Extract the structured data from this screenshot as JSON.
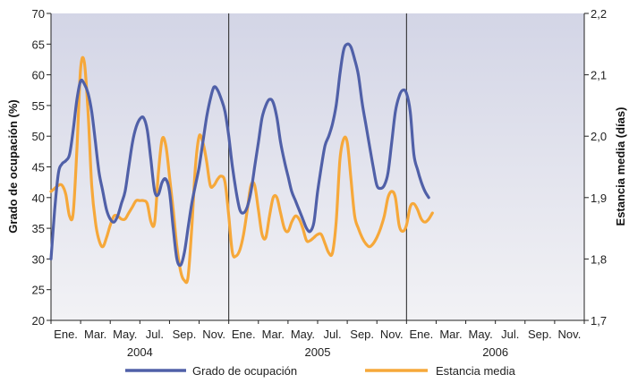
{
  "chart_data": {
    "type": "line",
    "title": "",
    "ylabel_left": "Grado de ocupación (%)",
    "ylabel_right": "Estancia media (días)",
    "ylim_left": [
      20,
      70
    ],
    "ylim_right": [
      1.7,
      2.2
    ],
    "yticks_left": [
      "20",
      "25",
      "30",
      "35",
      "40",
      "45",
      "50",
      "55",
      "60",
      "65",
      "70"
    ],
    "yticks_right": [
      "1,7",
      "1,8",
      "1,9",
      "2,0",
      "2,1",
      "2,2"
    ],
    "month_labels": [
      "Ene.",
      "Mar.",
      "May.",
      "Jul.",
      "Sep.",
      "Nov.",
      "Ene.",
      "Mar.",
      "May.",
      "Jul.",
      "Sep.",
      "Nov.",
      "Ene.",
      "Mar.",
      "May.",
      "Jul.",
      "Sep.",
      "Nov."
    ],
    "year_labels": [
      "2004",
      "2005",
      "2006"
    ],
    "grid": false,
    "legend_position": "bottom",
    "colors": {
      "ocupacion": "#5060a8",
      "estancia": "#f6a83a",
      "background_top": "#d3d5e6",
      "background_bottom": "#f2f2f5"
    },
    "series": [
      {
        "name": "Grado de ocupación",
        "axis": "left",
        "points": [
          [
            0,
            30
          ],
          [
            0.25,
            38
          ],
          [
            0.5,
            44
          ],
          [
            0.75,
            45.5
          ],
          [
            1,
            46
          ],
          [
            1.25,
            47
          ],
          [
            1.5,
            51
          ],
          [
            1.75,
            56
          ],
          [
            2,
            59
          ],
          [
            2.25,
            58.5
          ],
          [
            2.5,
            57
          ],
          [
            2.75,
            54
          ],
          [
            3,
            49
          ],
          [
            3.25,
            44
          ],
          [
            3.5,
            41
          ],
          [
            3.75,
            38
          ],
          [
            4,
            36.5
          ],
          [
            4.25,
            36
          ],
          [
            4.5,
            37
          ],
          [
            4.75,
            39
          ],
          [
            5,
            41
          ],
          [
            5.25,
            45
          ],
          [
            5.5,
            49
          ],
          [
            5.75,
            51.5
          ],
          [
            6,
            52.8
          ],
          [
            6.25,
            53
          ],
          [
            6.5,
            51
          ],
          [
            6.75,
            46
          ],
          [
            7,
            41
          ],
          [
            7.25,
            40.5
          ],
          [
            7.5,
            42.5
          ],
          [
            7.75,
            43
          ],
          [
            8,
            41
          ],
          [
            8.25,
            35
          ],
          [
            8.5,
            30
          ],
          [
            8.75,
            29
          ],
          [
            9,
            31
          ],
          [
            9.25,
            35
          ],
          [
            9.5,
            39
          ],
          [
            9.75,
            42
          ],
          [
            10,
            45
          ],
          [
            10.25,
            49
          ],
          [
            10.5,
            53
          ],
          [
            10.75,
            56
          ],
          [
            11,
            58
          ],
          [
            11.25,
            57.5
          ],
          [
            11.5,
            56
          ],
          [
            11.75,
            54
          ],
          [
            12,
            50
          ],
          [
            12.25,
            45
          ],
          [
            12.5,
            41
          ],
          [
            12.75,
            38
          ],
          [
            13,
            37.5
          ],
          [
            13.25,
            38.5
          ],
          [
            13.5,
            41
          ],
          [
            13.75,
            45
          ],
          [
            14,
            49
          ],
          [
            14.25,
            53
          ],
          [
            14.5,
            55
          ],
          [
            14.75,
            56
          ],
          [
            15,
            55.5
          ],
          [
            15.25,
            53
          ],
          [
            15.5,
            49
          ],
          [
            15.75,
            46
          ],
          [
            16,
            43.5
          ],
          [
            16.25,
            41
          ],
          [
            16.5,
            39.5
          ],
          [
            16.75,
            38
          ],
          [
            17,
            36.5
          ],
          [
            17.25,
            35
          ],
          [
            17.5,
            34.5
          ],
          [
            17.75,
            36
          ],
          [
            18,
            41
          ],
          [
            18.25,
            45
          ],
          [
            18.5,
            48.5
          ],
          [
            18.75,
            50
          ],
          [
            19,
            52
          ],
          [
            19.25,
            55
          ],
          [
            19.5,
            60
          ],
          [
            19.75,
            64
          ],
          [
            20,
            65
          ],
          [
            20.25,
            64.5
          ],
          [
            20.5,
            62.5
          ],
          [
            20.75,
            60
          ],
          [
            21,
            55.5
          ],
          [
            21.25,
            52
          ],
          [
            21.5,
            48.5
          ],
          [
            21.75,
            45
          ],
          [
            22,
            42
          ],
          [
            22.25,
            41.5
          ],
          [
            22.5,
            42
          ],
          [
            22.75,
            44
          ],
          [
            23,
            49
          ],
          [
            23.25,
            54
          ],
          [
            23.5,
            56.5
          ],
          [
            23.75,
            57.5
          ],
          [
            24,
            57
          ],
          [
            24.25,
            54
          ],
          [
            24.5,
            47
          ],
          [
            24.75,
            44.5
          ],
          [
            25,
            42.5
          ],
          [
            25.25,
            41
          ],
          [
            25.5,
            40
          ]
        ]
      },
      {
        "name": "Estancia media",
        "axis": "right",
        "points": [
          [
            0,
            1.91
          ],
          [
            0.25,
            1.915
          ],
          [
            0.5,
            1.92
          ],
          [
            0.75,
            1.92
          ],
          [
            1,
            1.905
          ],
          [
            1.25,
            1.87
          ],
          [
            1.5,
            1.875
          ],
          [
            1.75,
            1.98
          ],
          [
            2,
            2.11
          ],
          [
            2.25,
            2.12
          ],
          [
            2.5,
            2.04
          ],
          [
            2.75,
            1.92
          ],
          [
            3,
            1.86
          ],
          [
            3.25,
            1.83
          ],
          [
            3.5,
            1.82
          ],
          [
            3.75,
            1.835
          ],
          [
            4,
            1.855
          ],
          [
            4.25,
            1.87
          ],
          [
            4.5,
            1.87
          ],
          [
            4.75,
            1.865
          ],
          [
            5,
            1.865
          ],
          [
            5.25,
            1.875
          ],
          [
            5.5,
            1.885
          ],
          [
            5.75,
            1.895
          ],
          [
            6,
            1.895
          ],
          [
            6.25,
            1.895
          ],
          [
            6.5,
            1.89
          ],
          [
            6.75,
            1.86
          ],
          [
            7,
            1.86
          ],
          [
            7.25,
            1.94
          ],
          [
            7.5,
            1.995
          ],
          [
            7.75,
            1.985
          ],
          [
            8,
            1.935
          ],
          [
            8.25,
            1.88
          ],
          [
            8.5,
            1.82
          ],
          [
            8.75,
            1.78
          ],
          [
            9,
            1.765
          ],
          [
            9.25,
            1.77
          ],
          [
            9.5,
            1.85
          ],
          [
            9.75,
            1.95
          ],
          [
            10,
            2.0
          ],
          [
            10.25,
            1.99
          ],
          [
            10.5,
            1.96
          ],
          [
            10.75,
            1.92
          ],
          [
            11,
            1.92
          ],
          [
            11.25,
            1.93
          ],
          [
            11.5,
            1.935
          ],
          [
            11.75,
            1.925
          ],
          [
            12,
            1.87
          ],
          [
            12.25,
            1.81
          ],
          [
            12.5,
            1.805
          ],
          [
            12.75,
            1.815
          ],
          [
            13,
            1.84
          ],
          [
            13.25,
            1.88
          ],
          [
            13.5,
            1.92
          ],
          [
            13.75,
            1.92
          ],
          [
            14,
            1.88
          ],
          [
            14.25,
            1.84
          ],
          [
            14.5,
            1.835
          ],
          [
            14.75,
            1.87
          ],
          [
            15,
            1.9
          ],
          [
            15.25,
            1.9
          ],
          [
            15.5,
            1.875
          ],
          [
            15.75,
            1.85
          ],
          [
            16,
            1.845
          ],
          [
            16.25,
            1.86
          ],
          [
            16.5,
            1.87
          ],
          [
            16.75,
            1.865
          ],
          [
            17,
            1.85
          ],
          [
            17.25,
            1.83
          ],
          [
            17.5,
            1.83
          ],
          [
            17.75,
            1.835
          ],
          [
            18,
            1.84
          ],
          [
            18.25,
            1.84
          ],
          [
            18.5,
            1.825
          ],
          [
            18.75,
            1.81
          ],
          [
            19,
            1.81
          ],
          [
            19.25,
            1.86
          ],
          [
            19.5,
            1.96
          ],
          [
            19.75,
            1.995
          ],
          [
            20,
            1.99
          ],
          [
            20.25,
            1.93
          ],
          [
            20.5,
            1.87
          ],
          [
            20.75,
            1.85
          ],
          [
            21,
            1.835
          ],
          [
            21.25,
            1.825
          ],
          [
            21.5,
            1.82
          ],
          [
            21.75,
            1.825
          ],
          [
            22,
            1.835
          ],
          [
            22.25,
            1.85
          ],
          [
            22.5,
            1.87
          ],
          [
            22.75,
            1.9
          ],
          [
            23,
            1.91
          ],
          [
            23.25,
            1.9
          ],
          [
            23.5,
            1.855
          ],
          [
            23.75,
            1.845
          ],
          [
            24,
            1.855
          ],
          [
            24.25,
            1.885
          ],
          [
            24.5,
            1.89
          ],
          [
            24.75,
            1.88
          ],
          [
            25,
            1.865
          ],
          [
            25.25,
            1.86
          ],
          [
            25.5,
            1.865
          ],
          [
            25.75,
            1.875
          ]
        ]
      }
    ]
  }
}
